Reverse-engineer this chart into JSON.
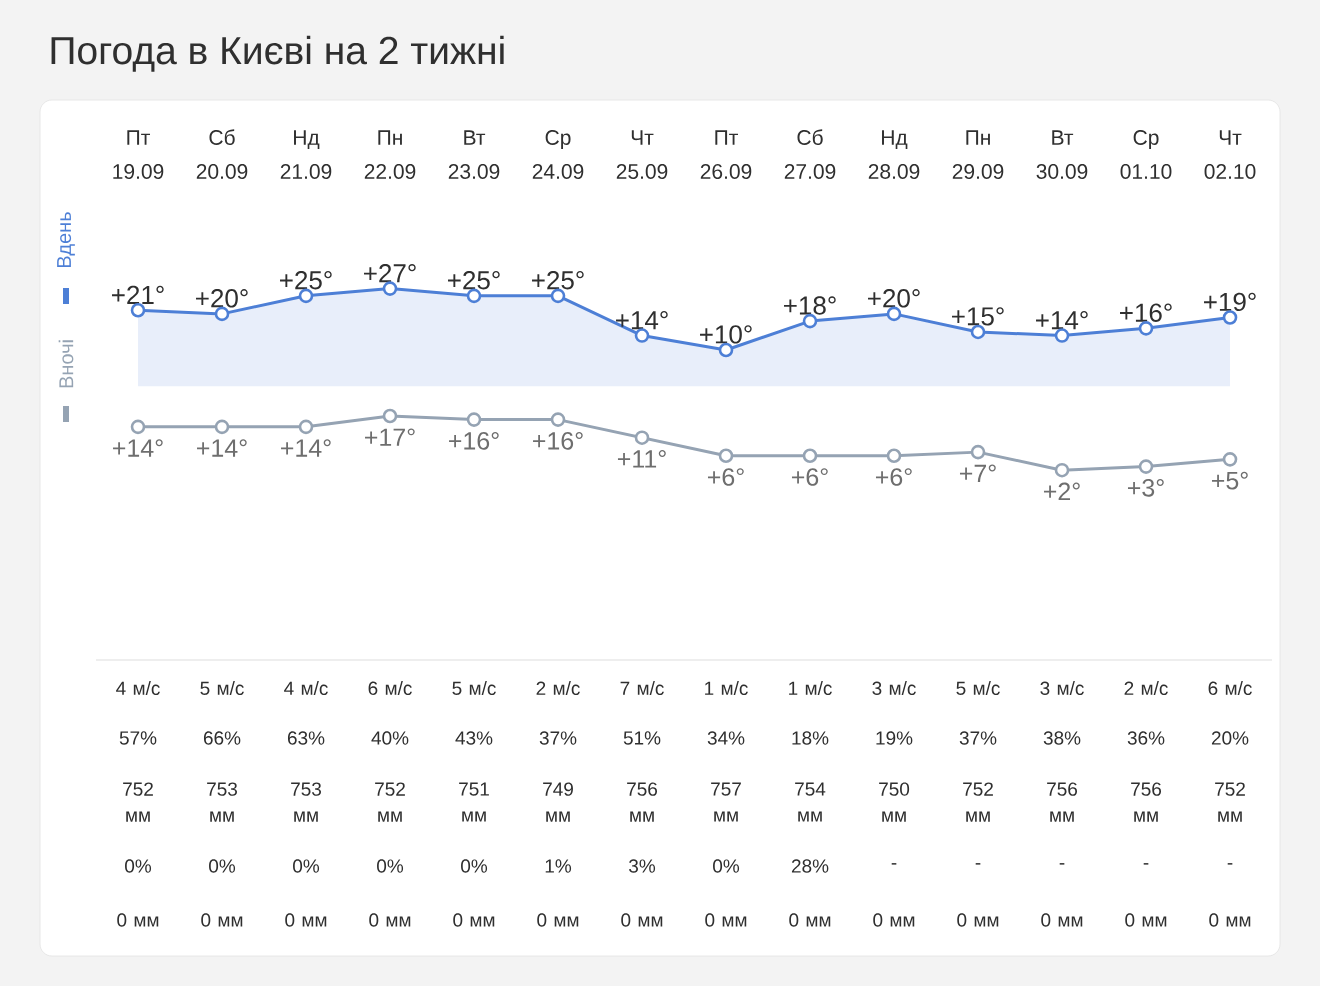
{
  "chart_data": [
    {
      "type": "area",
      "title": "Погода в Києві на 2 тижні",
      "categories": [
        "Пт 19.09",
        "Сб 20.09",
        "Нд 21.09",
        "Пн 22.09",
        "Вт 23.09",
        "Ср 24.09",
        "Чт 25.09",
        "Пт 26.09",
        "Сб 27.09",
        "Нд 28.09",
        "Пн 29.09",
        "Вт 30.09",
        "Ср 01.10",
        "Чт 02.10"
      ],
      "series": [
        {
          "name": "Вдень",
          "color": "#4d7fd6",
          "values": [
            21,
            20,
            25,
            27,
            25,
            25,
            14,
            10,
            18,
            20,
            15,
            14,
            16,
            19
          ],
          "value_labels": [
            "+21°",
            "+20°",
            "+25°",
            "+27°",
            "+25°",
            "+25°",
            "+14°",
            "+10°",
            "+18°",
            "+20°",
            "+15°",
            "+14°",
            "+16°",
            "+19°"
          ]
        }
      ],
      "tick_labels": "x",
      "legend": "left",
      "marker": "circle",
      "line_style": "solid"
    },
    {
      "type": "line",
      "categories": [
        null,
        null,
        null,
        null,
        null,
        null,
        null,
        null,
        null,
        null,
        null,
        null,
        null,
        null
      ],
      "series": [
        {
          "name": "Вночі",
          "color": "#95a3b3",
          "values": [
            14,
            14,
            14,
            17,
            16,
            16,
            11,
            6,
            6,
            6,
            7,
            2,
            3,
            5
          ],
          "value_labels": [
            "+14°",
            "+14°",
            "+14°",
            "+17°",
            "+16°",
            "+16°",
            "+11°",
            "+6°",
            "+6°",
            "+6°",
            "+7°",
            "+2°",
            "+3°",
            "+5°"
          ]
        }
      ],
      "tick_labels": false,
      "legend": "left",
      "marker": "circle",
      "line_style": "solid",
      "annotations": [
        "4 м/с",
        "5 м/с",
        "4 м/с",
        "6 м/с",
        "5 м/с",
        "2 м/с",
        "7 м/с",
        "1 м/с",
        "1 м/с",
        "3 м/с",
        "5 м/с",
        "3 м/с",
        "2 м/с",
        "6 м/с",
        "57%",
        "66%",
        "63%",
        "40%",
        "43%",
        "37%",
        "51%",
        "34%",
        "18%",
        "19%",
        "37%",
        "38%",
        "36%",
        "20%",
        "752 мм",
        "753 мм",
        "753 мм",
        "752 мм",
        "751 мм",
        "749 мм",
        "756 мм",
        "757 мм",
        "754 мм",
        "750 мм",
        "752 мм",
        "756 мм",
        "756 мм",
        "752 мм",
        "0%",
        "0%",
        "0%",
        "0%",
        "0%",
        "1%",
        "3%",
        "0%",
        "28%",
        "-",
        "-",
        "-",
        "-",
        "-",
        "0 мм",
        "0 мм",
        "0 мм",
        "0 мм",
        "0 мм",
        "0 мм",
        "0 мм",
        "0 мм",
        "0 мм",
        "0 мм",
        "0 мм",
        "0 мм",
        "0 мм",
        "0 мм"
      ]
    }
  ]
}
